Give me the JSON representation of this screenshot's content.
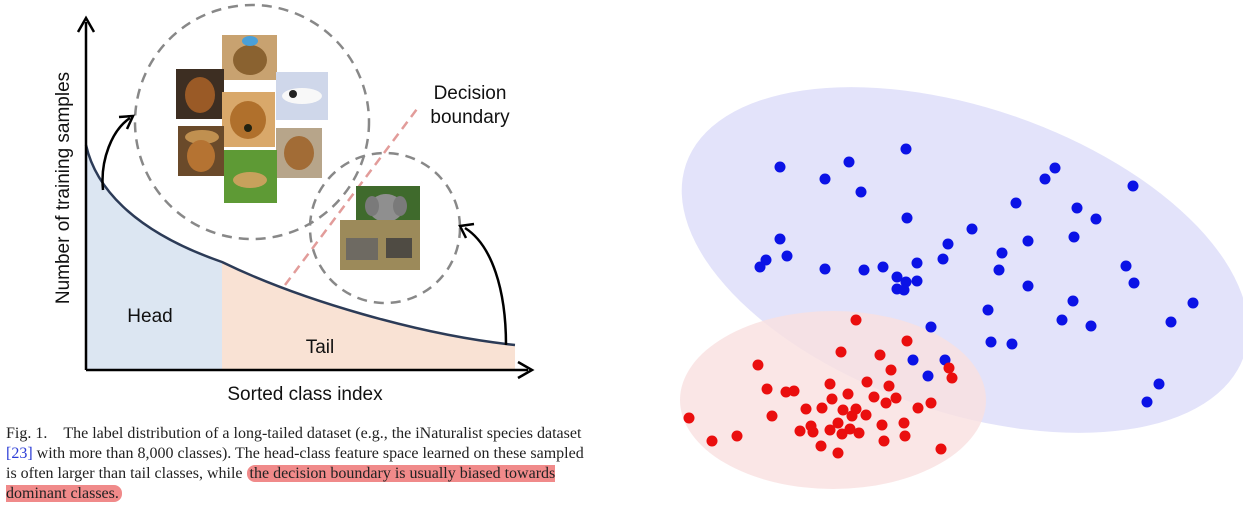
{
  "left_figure": {
    "y_axis_label": "Number of training samples",
    "x_axis_label": "Sorted class index",
    "head_label": "Head",
    "tail_label": "Tail",
    "decision_label_line1": "Decision",
    "decision_label_line2": "boundary"
  },
  "caption": {
    "prefix": "Fig. 1.",
    "text_part1": "The label distribution of a long-tailed dataset (e.g., the iNaturalist species dataset ",
    "ref": "[23]",
    "text_part2": " with more than 8,000 classes). The head-class feature space learned on these sampled is often larger than tail classes, while ",
    "highlight": "the decision boundary is usually biased towards dominant classes."
  },
  "colors": {
    "head_fill": "#dce6f2",
    "tail_fill": "#f9e2d4",
    "curve": "#2c3b57",
    "boundary_dash": "#e29c9a",
    "blue_region": "#e3e3fa",
    "red_region": "#f9e0e0",
    "blue_dot": "#0b12e6",
    "red_dot": "#ea0e0e",
    "highlight": "#f08a8a"
  },
  "icons": {
    "head_images": "dog-photo-icon",
    "tail_images": "elephant-photo-icon"
  }
}
